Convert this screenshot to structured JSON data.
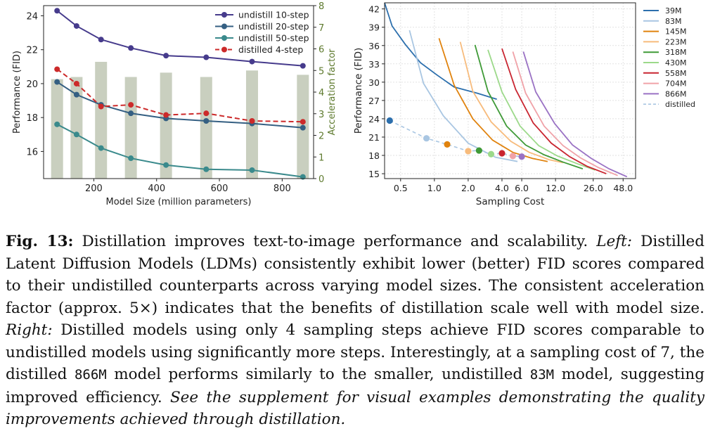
{
  "chart_data": [
    {
      "type": "line",
      "xlabel": "Model Size (million parameters)",
      "ylabel": "Performance (FID)",
      "y2label": "Acceleration factor",
      "xlim": [
        40,
        900
      ],
      "ylim": [
        14.4,
        24.6
      ],
      "y2lim": [
        0,
        8
      ],
      "xticks": [
        200,
        400,
        600,
        800
      ],
      "yticks": [
        16,
        18,
        20,
        22,
        24
      ],
      "y2ticks": [
        0,
        1,
        2,
        3,
        4,
        5,
        6,
        7,
        8
      ],
      "legend": "top-right",
      "x": [
        83,
        145,
        223,
        318,
        430,
        558,
        704,
        866
      ],
      "series": [
        {
          "name": "undistill 10-step",
          "color": "#463b8c",
          "style": "solid",
          "values": [
            24.3,
            23.4,
            22.6,
            22.1,
            21.65,
            21.55,
            21.3,
            21.05
          ]
        },
        {
          "name": "undistill 20-step",
          "color": "#345f82",
          "style": "solid",
          "values": [
            20.1,
            19.35,
            18.75,
            18.25,
            17.95,
            17.8,
            17.65,
            17.4
          ]
        },
        {
          "name": "undistill 50-step",
          "color": "#3a8a8c",
          "style": "solid",
          "values": [
            17.6,
            17.0,
            16.2,
            15.6,
            15.2,
            14.95,
            14.9,
            14.5
          ]
        },
        {
          "name": "distilled 4-step",
          "color": "#cc2a2a",
          "style": "dashed",
          "values": [
            20.85,
            20.0,
            18.65,
            18.75,
            18.15,
            18.25,
            17.8,
            17.75
          ]
        }
      ],
      "bars": {
        "axis": "y2",
        "color": "#c9cfbf",
        "values": [
          4.6,
          4.7,
          5.4,
          4.7,
          4.9,
          4.7,
          5.0,
          4.8
        ]
      }
    },
    {
      "type": "line",
      "xlabel": "Sampling Cost",
      "ylabel": "Performance (FID)",
      "xscale": "log",
      "xlim": [
        0.36,
        62
      ],
      "ylim": [
        14.2,
        43
      ],
      "xticks": [
        0.5,
        1.0,
        2.0,
        4.0,
        6.0,
        12.0,
        26.0,
        48.0
      ],
      "xticklabels": [
        "0.5",
        "1.0",
        "2.0",
        "4.0",
        "6.0",
        "12.0",
        "26.0",
        "48.0"
      ],
      "yticks": [
        15,
        18,
        21,
        24,
        27,
        30,
        33,
        36,
        39,
        42
      ],
      "legend": "right-outside",
      "series": [
        {
          "name": "39M",
          "color": "#2c6fad",
          "points": [
            [
              0.36,
              43
            ],
            [
              0.42,
              39.2
            ],
            [
              0.55,
              36.2
            ],
            [
              0.75,
              33.2
            ],
            [
              1.05,
              31.2
            ],
            [
              1.5,
              29.2
            ],
            [
              2.4,
              28.2
            ],
            [
              3.6,
              27.2
            ]
          ]
        },
        {
          "name": "83M",
          "color": "#a9c6e2",
          "points": [
            [
              0.6,
              38.5
            ],
            [
              0.8,
              29.8
            ],
            [
              1.2,
              24.5
            ],
            [
              2.0,
              20.0
            ],
            [
              3.5,
              17.7
            ],
            [
              5.5,
              17.0
            ]
          ]
        },
        {
          "name": "145M",
          "color": "#e0830e",
          "points": [
            [
              1.1,
              37.2
            ],
            [
              1.5,
              29.5
            ],
            [
              2.2,
              24.0
            ],
            [
              3.3,
              20.5
            ],
            [
              5.0,
              18.5
            ],
            [
              7.5,
              17.5
            ],
            [
              10.2,
              17.0
            ]
          ]
        },
        {
          "name": "223M",
          "color": "#f7bb7c",
          "points": [
            [
              1.7,
              36.6
            ],
            [
              2.2,
              28.5
            ],
            [
              3.2,
              23.5
            ],
            [
              4.8,
              20.3
            ],
            [
              7.0,
              18.5
            ],
            [
              10.5,
              17.3
            ],
            [
              14.0,
              16.8
            ]
          ]
        },
        {
          "name": "318M",
          "color": "#3f9a37",
          "points": [
            [
              2.3,
              36.1
            ],
            [
              3.0,
              28.5
            ],
            [
              4.4,
              22.8
            ],
            [
              6.5,
              19.7
            ],
            [
              9.5,
              18.1
            ],
            [
              14.0,
              16.9
            ],
            [
              21.0,
              15.8
            ]
          ]
        },
        {
          "name": "430M",
          "color": "#9cd98a",
          "points": [
            [
              3.0,
              35.3
            ],
            [
              4.0,
              28.4
            ],
            [
              5.8,
              22.8
            ],
            [
              8.5,
              19.6
            ],
            [
              12.5,
              17.9
            ],
            [
              19.0,
              16.6
            ],
            [
              27.0,
              15.6
            ]
          ]
        },
        {
          "name": "558M",
          "color": "#c92530",
          "points": [
            [
              4.0,
              35.5
            ],
            [
              5.3,
              28.8
            ],
            [
              7.6,
              23.3
            ],
            [
              11.0,
              20.0
            ],
            [
              16.0,
              17.8
            ],
            [
              23.0,
              16.2
            ],
            [
              34.0,
              15.0
            ]
          ]
        },
        {
          "name": "704M",
          "color": "#f0a2a8",
          "points": [
            [
              5.0,
              35.0
            ],
            [
              6.5,
              28.2
            ],
            [
              9.5,
              22.8
            ],
            [
              14.0,
              19.6
            ],
            [
              20.0,
              17.6
            ],
            [
              29.0,
              16.0
            ],
            [
              43.0,
              14.7
            ]
          ]
        },
        {
          "name": "866M",
          "color": "#9a72c4",
          "points": [
            [
              6.2,
              35.0
            ],
            [
              8.0,
              28.4
            ],
            [
              11.8,
              23.2
            ],
            [
              17.0,
              19.7
            ],
            [
              25.0,
              17.5
            ],
            [
              36.0,
              15.8
            ],
            [
              52.0,
              14.5
            ]
          ]
        }
      ],
      "distilled": {
        "name": "distilled",
        "color": "#a9c6e2",
        "points": [
          [
            0.4,
            23.7
          ],
          [
            0.85,
            20.8
          ],
          [
            1.3,
            19.8
          ],
          [
            2.0,
            18.7
          ],
          [
            2.5,
            18.8
          ],
          [
            3.2,
            18.2
          ],
          [
            4.0,
            18.35
          ],
          [
            5.0,
            17.9
          ],
          [
            6.0,
            17.8
          ]
        ],
        "marker_colors": [
          "#2c6fad",
          "#a9c6e2",
          "#e0830e",
          "#f7bb7c",
          "#3f9a37",
          "#9cd98a",
          "#c92530",
          "#f0a2a8",
          "#9a72c4"
        ]
      }
    }
  ],
  "caption": {
    "label": "Fig. 13:",
    "p1": " Distillation improves text-to-image performance and scalability. ",
    "left_label": "Left:",
    "p2": " Distilled Latent Diffusion Models (LDMs) consistently exhibit lower (better) FID scores compared to their undistilled counterparts across varying model sizes. The consistent acceleration factor (approx. 5×) indicates that the benefits of distillation scale well with model size. ",
    "right_label": "Right:",
    "p3": " Distilled models using only 4 sampling steps achieve FID scores comparable to undistilled models using significantly more steps. Interestingly, at a sampling cost of 7, the distilled ",
    "m1": "866M",
    "p4": " model performs similarly to the smaller, undistilled ",
    "m2": "83M",
    "p5": " model, suggesting improved efficiency. ",
    "italic_end": "See the supplement for visual examples demonstrating the quality improvements achieved through distillation."
  }
}
